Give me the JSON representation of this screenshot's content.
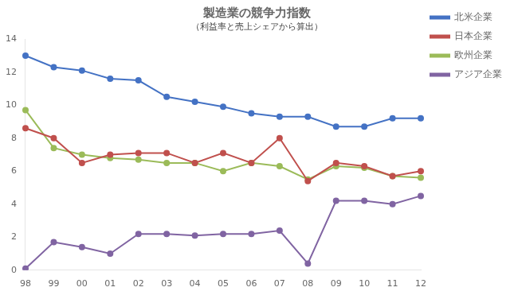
{
  "chart_data": {
    "type": "line",
    "title": "製造業の競争力指数",
    "subtitle": "（利益率と売上シェアから算出）",
    "categories": [
      "98",
      "99",
      "00",
      "01",
      "02",
      "03",
      "04",
      "05",
      "06",
      "07",
      "08",
      "09",
      "10",
      "11",
      "12"
    ],
    "series": [
      {
        "name": "北米企業",
        "color": "#4472C4",
        "marker": "circle",
        "values": [
          13.0,
          12.3,
          12.1,
          11.6,
          11.5,
          10.5,
          10.2,
          9.9,
          9.5,
          9.3,
          9.3,
          8.7,
          8.7,
          9.2,
          9.2
        ]
      },
      {
        "name": "日本企業",
        "color": "#C0504D",
        "marker": "circle",
        "values": [
          8.6,
          8.0,
          6.5,
          7.0,
          7.1,
          7.1,
          6.5,
          7.1,
          6.5,
          8.0,
          5.4,
          6.5,
          6.3,
          5.7,
          6.0
        ]
      },
      {
        "name": "欧州企業",
        "color": "#9BBB59",
        "marker": "circle",
        "values": [
          9.7,
          7.4,
          7.0,
          6.8,
          6.7,
          6.5,
          6.5,
          6.0,
          6.5,
          6.3,
          5.5,
          6.3,
          6.2,
          5.7,
          5.6
        ]
      },
      {
        "name": "アジア企業",
        "color": "#8064A2",
        "marker": "circle",
        "values": [
          0.1,
          1.7,
          1.4,
          1.0,
          2.2,
          2.2,
          2.1,
          2.2,
          2.2,
          2.4,
          0.4,
          4.2,
          4.2,
          4.0,
          4.5
        ]
      }
    ],
    "ylim": [
      0,
      14
    ],
    "yticks": [
      0,
      2,
      4,
      6,
      8,
      10,
      12,
      14
    ],
    "grid": false,
    "legend": "right"
  }
}
